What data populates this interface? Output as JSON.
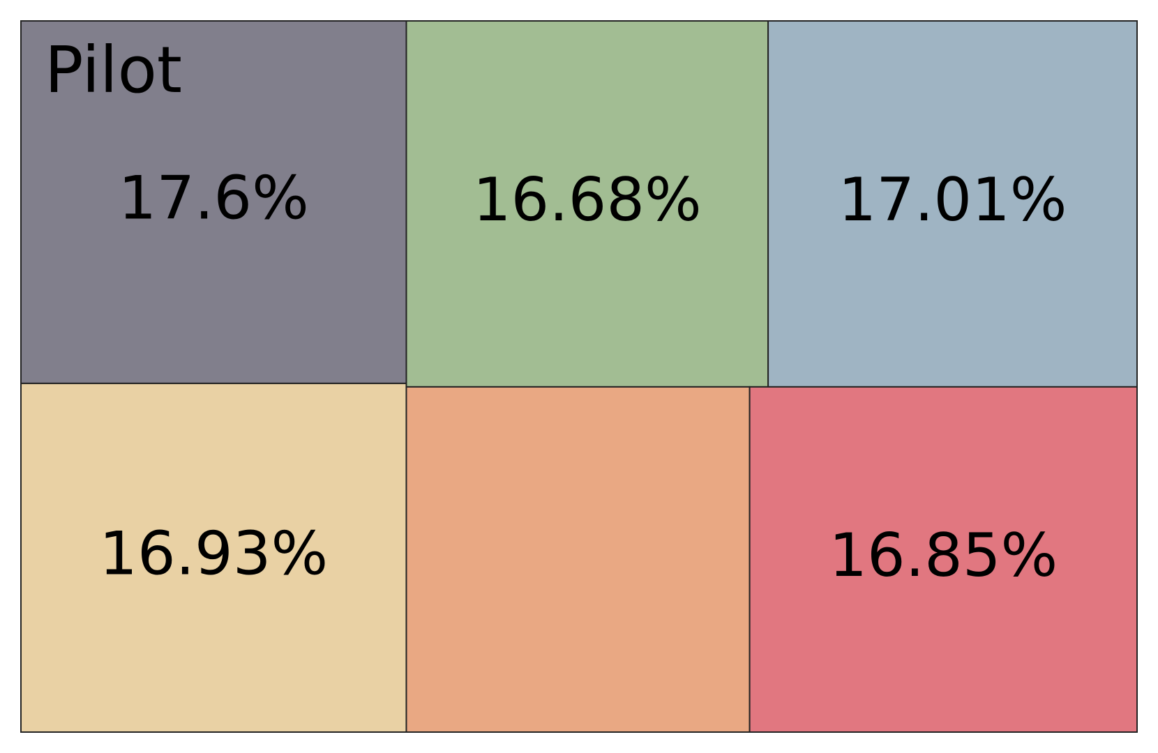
{
  "chart_data": {
    "type": "treemap",
    "title": "Pilot",
    "values": [
      17.6,
      16.93,
      16.68,
      17.01,
      14.93,
      16.85
    ],
    "value_labels": [
      "17.6%",
      "16.93%",
      "16.68%",
      "17.01%",
      null,
      "16.85%"
    ],
    "colors": [
      "#817f8c",
      "#e9d1a4",
      "#a2bd93",
      "#9fb4c3",
      "#e9a883",
      "#e17780"
    ]
  }
}
